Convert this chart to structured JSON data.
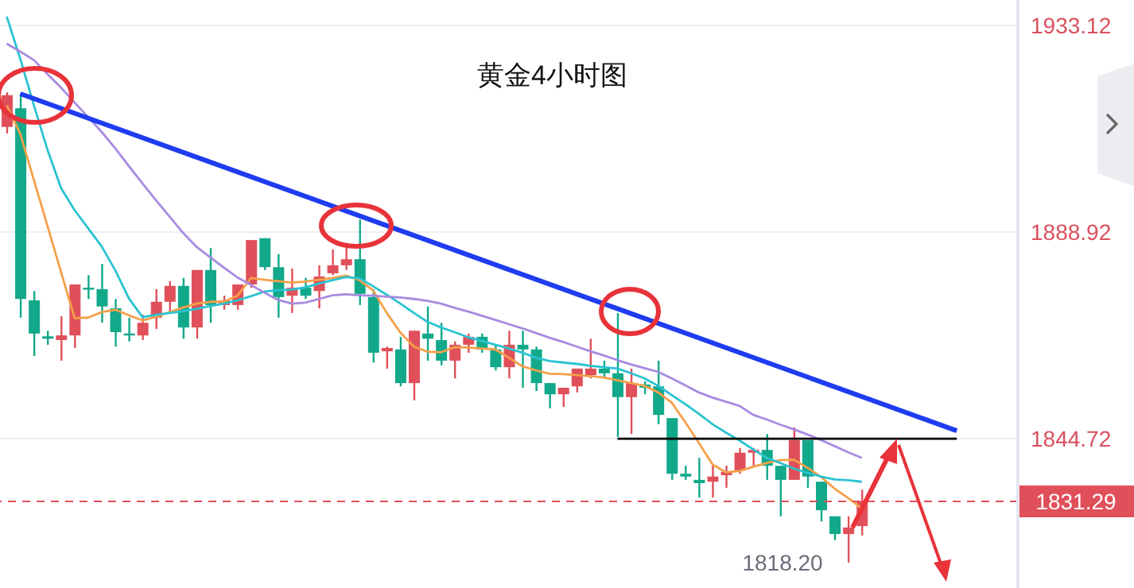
{
  "chart_data": {
    "type": "candlestick",
    "title": "黄金4小时图",
    "categories": [
      null,
      null,
      null,
      null,
      null,
      null,
      null,
      null,
      null,
      null,
      null,
      null,
      null,
      null,
      null,
      null,
      null,
      null,
      null,
      null,
      null,
      null,
      null,
      null,
      null,
      null,
      null,
      null,
      null,
      null,
      null,
      null,
      null,
      null,
      null,
      null,
      null,
      null,
      null,
      null,
      null,
      null,
      null,
      null,
      null,
      null,
      null,
      null,
      null,
      null,
      null,
      null,
      null,
      null,
      null,
      null,
      null,
      null,
      null,
      null,
      null,
      null,
      null,
      null,
      null,
      null,
      null,
      null,
      null,
      null,
      null,
      null,
      null,
      null,
      null
    ],
    "ohlc": [
      [
        1911.4,
        1918.8,
        1910.0,
        1918.2
      ],
      [
        1915.4,
        1918.5,
        1870.6,
        1874.6
      ],
      [
        1874.3,
        1876.3,
        1862.4,
        1867.2
      ],
      [
        1866.6,
        1867.8,
        1864.8,
        1866.1
      ],
      [
        1865.8,
        1870.9,
        1861.4,
        1866.8
      ],
      [
        1866.8,
        1877.7,
        1864.1,
        1877.7
      ],
      [
        1877.0,
        1879.7,
        1874.6,
        1876.7
      ],
      [
        1876.7,
        1882.1,
        1869.5,
        1873.0
      ],
      [
        1872.6,
        1874.6,
        1864.4,
        1867.5
      ],
      [
        1867.2,
        1870.6,
        1865.5,
        1866.8
      ],
      [
        1866.8,
        1871.2,
        1865.8,
        1869.5
      ],
      [
        1870.6,
        1876.7,
        1868.2,
        1874.0
      ],
      [
        1874.0,
        1878.4,
        1871.6,
        1877.4
      ],
      [
        1877.4,
        1879.1,
        1866.1,
        1868.5
      ],
      [
        1868.5,
        1880.8,
        1866.1,
        1880.8
      ],
      [
        1880.8,
        1885.5,
        1869.5,
        1873.3
      ],
      [
        1873.3,
        1875.3,
        1872.3,
        1874.3
      ],
      [
        1873.3,
        1877.7,
        1872.3,
        1877.7
      ],
      [
        1877.7,
        1887.2,
        1877.0,
        1887.2
      ],
      [
        1887.6,
        1887.6,
        1880.8,
        1881.4
      ],
      [
        1881.4,
        1884.2,
        1870.6,
        1875.0
      ],
      [
        1875.3,
        1881.1,
        1871.6,
        1877.0
      ],
      [
        1877.0,
        1879.1,
        1874.6,
        1875.3
      ],
      [
        1876.3,
        1881.8,
        1872.6,
        1879.4
      ],
      [
        1880.1,
        1885.2,
        1879.7,
        1881.8
      ],
      [
        1881.8,
        1886.6,
        1880.8,
        1883.1
      ],
      [
        1883.1,
        1891.6,
        1873.3,
        1875.7
      ],
      [
        1875.0,
        1876.7,
        1861.0,
        1863.1
      ],
      [
        1863.4,
        1864.4,
        1859.7,
        1864.1
      ],
      [
        1863.8,
        1866.5,
        1855.9,
        1856.6
      ],
      [
        1856.6,
        1867.8,
        1852.9,
        1867.8
      ],
      [
        1867.2,
        1873.0,
        1861.4,
        1866.1
      ],
      [
        1865.8,
        1869.5,
        1860.4,
        1861.4
      ],
      [
        1861.4,
        1865.5,
        1857.6,
        1864.8
      ],
      [
        1864.8,
        1867.2,
        1863.1,
        1866.5
      ],
      [
        1866.5,
        1867.2,
        1863.1,
        1863.8
      ],
      [
        1863.8,
        1864.8,
        1859.3,
        1860.0
      ],
      [
        1860.0,
        1867.8,
        1857.6,
        1864.8
      ],
      [
        1864.8,
        1867.8,
        1855.6,
        1863.8
      ],
      [
        1863.8,
        1864.4,
        1854.9,
        1856.6
      ],
      [
        1856.6,
        1856.6,
        1851.2,
        1854.2
      ],
      [
        1854.2,
        1855.6,
        1851.5,
        1855.6
      ],
      [
        1855.9,
        1859.7,
        1854.6,
        1859.7
      ],
      [
        1858.3,
        1866.1,
        1857.6,
        1859.7
      ],
      [
        1859.7,
        1861.4,
        1857.6,
        1858.7
      ],
      [
        1858.7,
        1871.6,
        1845.1,
        1853.6
      ],
      [
        1853.6,
        1859.7,
        1845.7,
        1856.6
      ],
      [
        1856.3,
        1857.0,
        1854.2,
        1855.6
      ],
      [
        1855.9,
        1861.4,
        1847.8,
        1849.8
      ],
      [
        1849.1,
        1849.1,
        1835.9,
        1837.2
      ],
      [
        1837.2,
        1838.9,
        1835.9,
        1836.6
      ],
      [
        1835.9,
        1840.6,
        1832.1,
        1835.2
      ],
      [
        1835.5,
        1838.9,
        1832.1,
        1836.6
      ],
      [
        1836.9,
        1838.9,
        1834.2,
        1837.6
      ],
      [
        1837.9,
        1842.7,
        1837.2,
        1841.7
      ],
      [
        1841.7,
        1842.7,
        1838.9,
        1842.3
      ],
      [
        1842.3,
        1845.7,
        1835.9,
        1838.9
      ],
      [
        1838.9,
        1838.9,
        1828.1,
        1835.9
      ],
      [
        1835.9,
        1847.1,
        1835.9,
        1844.4
      ],
      [
        1844.4,
        1844.4,
        1834.2,
        1836.6
      ],
      [
        1835.5,
        1835.5,
        1827.0,
        1829.4
      ],
      [
        1828.1,
        1828.1,
        1823.0,
        1824.3
      ],
      [
        1824.3,
        1828.1,
        1818.2,
        1825.7
      ],
      [
        1826.0,
        1833.8,
        1824.0,
        1831.29
      ],
      null,
      null,
      null,
      null,
      null,
      null,
      null,
      null,
      null,
      null,
      null
    ],
    "colors": [
      "#e0505a",
      "#12a88a",
      "#12a88a",
      "#12a88a",
      "#e0505a",
      "#e0505a",
      "#12a88a",
      "#12a88a",
      "#12a88a",
      "#12a88a",
      "#e0505a",
      "#e0505a",
      "#e0505a",
      "#12a88a",
      "#e0505a",
      "#12a88a",
      "#e0505a",
      "#e0505a",
      "#e0505a",
      "#12a88a",
      "#12a88a",
      "#e0505a",
      "#12a88a",
      "#e0505a",
      "#e0505a",
      "#e0505a",
      "#12a88a",
      "#12a88a",
      "#e0505a",
      "#12a88a",
      "#e0505a",
      "#12a88a",
      "#12a88a",
      "#e0505a",
      "#e0505a",
      "#12a88a",
      "#12a88a",
      "#e0505a",
      "#12a88a",
      "#12a88a",
      "#12a88a",
      "#e0505a",
      "#e0505a",
      "#e0505a",
      "#12a88a",
      "#12a88a",
      "#e0505a",
      "#12a88a",
      "#12a88a",
      "#12a88a",
      "#12a88a",
      "#12a88a",
      "#e0505a",
      "#e0505a",
      "#e0505a",
      "#e0505a",
      "#12a88a",
      "#12a88a",
      "#e0505a",
      "#12a88a",
      "#12a88a",
      "#12a88a",
      "#e0505a",
      "#e0505a",
      null,
      null,
      null,
      null,
      null,
      null,
      null,
      null,
      null,
      null,
      null
    ],
    "series": [
      {
        "type": "line",
        "color": "#f5a04a",
        "values": [
          1916.0,
          1909.9,
          1900.0,
          1890.2,
          1880.3,
          1870.5,
          1870.6,
          1871.8,
          1872.3,
          1871.1,
          1870.0,
          1870.8,
          1871.8,
          1872.8,
          1873.6,
          1874.0,
          1874.0,
          1875.3,
          1879.1,
          1878.7,
          1878.4,
          1878.1,
          1878.3,
          1878.7,
          1879.1,
          1879.6,
          1878.6,
          1876.4,
          1871.6,
          1867.4,
          1864.4,
          1863.3,
          1863.2,
          1864.3,
          1864.2,
          1864.0,
          1863.8,
          1862.0,
          1860.2,
          1859.3,
          1858.6,
          1858.5,
          1858.3,
          1858.1,
          1857.8,
          1857.2,
          1856.6,
          1856.0,
          1854.6,
          1852.4,
          1848.2,
          1843.8,
          1839.2,
          1837.5,
          1837.8,
          1838.7,
          1839.5,
          1840.1,
          1840.2,
          1838.5,
          1836.5,
          1834.0,
          1832.0,
          1829.8,
          null,
          null,
          null,
          null,
          null,
          null,
          null,
          null,
          null,
          null,
          null
        ]
      },
      {
        "type": "line",
        "color": "#2ac3d1",
        "values": [
          1935.0,
          1925.9,
          1916.0,
          1906.5,
          1898.3,
          1893.6,
          1889.7,
          1885.8,
          1880.7,
          1874.7,
          1870.7,
          1871.2,
          1871.6,
          1872.0,
          1872.5,
          1873.1,
          1873.6,
          1874.3,
          1875.2,
          1876.2,
          1876.5,
          1876.6,
          1877.1,
          1877.9,
          1878.6,
          1879.3,
          1879.0,
          1877.3,
          1875.5,
          1873.6,
          1871.6,
          1869.7,
          1868.5,
          1867.5,
          1866.4,
          1865.6,
          1864.8,
          1864.0,
          1863.1,
          1862.0,
          1861.3,
          1861.0,
          1860.7,
          1860.3,
          1860.0,
          1859.7,
          1858.7,
          1857.6,
          1856.0,
          1854.0,
          1852.1,
          1850.0,
          1847.8,
          1846.0,
          1844.3,
          1842.4,
          1840.6,
          1839.5,
          1838.3,
          1837.4,
          1836.6,
          1836.0,
          1835.8,
          1835.5,
          null,
          null,
          null,
          null,
          null,
          null,
          null,
          null,
          null,
          null,
          null
        ]
      },
      {
        "type": "line",
        "color": "#a88be0",
        "values": [
          1929.2,
          1927.5,
          1925.7,
          1922.7,
          1919.8,
          1916.6,
          1913.5,
          1910.3,
          1906.8,
          1903.0,
          1899.3,
          1895.7,
          1892.2,
          1888.7,
          1885.7,
          1883.5,
          1881.3,
          1879.2,
          1877.6,
          1875.9,
          1874.4,
          1873.6,
          1873.8,
          1874.6,
          1875.4,
          1875.6,
          1875.4,
          1875.3,
          1875.1,
          1874.9,
          1874.6,
          1874.2,
          1873.6,
          1872.7,
          1871.9,
          1871.0,
          1870.1,
          1869.2,
          1868.3,
          1867.3,
          1866.3,
          1865.4,
          1864.4,
          1863.4,
          1862.5,
          1861.5,
          1860.6,
          1859.8,
          1859.0,
          1857.6,
          1856.1,
          1854.6,
          1853.5,
          1852.6,
          1851.7,
          1849.8,
          1848.8,
          1847.7,
          1846.7,
          1845.6,
          1844.4,
          1843.1,
          1841.8,
          1840.6,
          null,
          null,
          null,
          null,
          null,
          null,
          null,
          null,
          null,
          null,
          null
        ]
      },
      {
        "type": "line",
        "color": "#1e3cf0",
        "values": [
          null,
          1918.5,
          null,
          null,
          null,
          null,
          null,
          null,
          null,
          null,
          null,
          null,
          null,
          null,
          null,
          null,
          null,
          null,
          null,
          null,
          null,
          null,
          null,
          null,
          null,
          null,
          null,
          null,
          null,
          null,
          null,
          null,
          null,
          null,
          null,
          null,
          null,
          null,
          null,
          null,
          null,
          null,
          null,
          null,
          null,
          null,
          null,
          null,
          null,
          null,
          null,
          null,
          null,
          null,
          null,
          null,
          null,
          null,
          null,
          null,
          null,
          null,
          null,
          null,
          null,
          null,
          null,
          null,
          null,
          null,
          1846.4,
          null,
          null,
          null,
          null
        ]
      },
      {
        "type": "line",
        "color": "#000000",
        "values": [
          null,
          null,
          null,
          null,
          null,
          null,
          null,
          null,
          null,
          null,
          null,
          null,
          null,
          null,
          null,
          null,
          null,
          null,
          null,
          null,
          null,
          null,
          null,
          null,
          null,
          null,
          null,
          null,
          null,
          null,
          null,
          null,
          null,
          null,
          null,
          null,
          null,
          null,
          null,
          null,
          null,
          null,
          null,
          null,
          null,
          1844.7,
          1844.7,
          1844.7,
          1844.7,
          1844.7,
          1844.7,
          1844.7,
          1844.7,
          1844.7,
          1844.7,
          1844.7,
          1844.7,
          1844.7,
          1844.7,
          1844.7,
          1844.7,
          1844.7,
          1844.7,
          1844.7,
          1844.7,
          1844.7,
          1844.7,
          1844.7,
          1844.7,
          1844.7,
          1844.7,
          null,
          null,
          null,
          null
        ]
      }
    ],
    "ref_lines": [
      {
        "axis": "y",
        "value": 1831.29,
        "label": "1831.29",
        "color": "#e0505a",
        "line_style": "dashed"
      }
    ],
    "annotations": [
      "1818.20"
    ],
    "ylim": [
      1812.76,
      1938.56
    ],
    "yticks": [
      1933.12,
      1888.92,
      1844.72
    ],
    "grid": "y",
    "tick_labels": "y"
  }
}
